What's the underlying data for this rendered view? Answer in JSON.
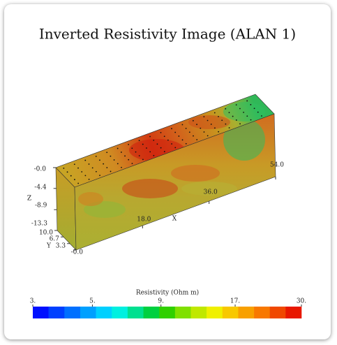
{
  "chart_data": {
    "type": "block3d",
    "title": "Inverted Resistivity Image (ALAN 1)",
    "x_label": "X",
    "y_label": "Y",
    "z_label": "Z",
    "xlim": [
      0,
      54
    ],
    "xticks": [
      {
        "value": 18,
        "label": "18.0"
      },
      {
        "value": 36,
        "label": "36.0"
      },
      {
        "value": 54,
        "label": "54.0"
      }
    ],
    "ylim": [
      0,
      10
    ],
    "yticks": [
      {
        "value": 0,
        "label": "-0.0"
      },
      {
        "value": 3.3,
        "label": "3.3"
      },
      {
        "value": 6.7,
        "label": "6.7"
      },
      {
        "value": 10,
        "label": "10.0"
      }
    ],
    "zlim": [
      -13.3,
      0
    ],
    "zticks": [
      {
        "value": 0,
        "label": "-0.0"
      },
      {
        "value": -4.4,
        "label": "-4.4"
      },
      {
        "value": -8.9,
        "label": "-8.9"
      },
      {
        "value": -13.3,
        "label": "-13.3"
      }
    ],
    "colorbar": {
      "title": "Resistivity (Ohm m)",
      "lim": [
        3,
        30
      ],
      "log": true,
      "ticks": [
        {
          "value": 3,
          "label": "3."
        },
        {
          "value": 5,
          "label": "5."
        },
        {
          "value": 9,
          "label": "9."
        },
        {
          "value": 17,
          "label": "17."
        },
        {
          "value": 30,
          "label": "30."
        }
      ],
      "colors": [
        "#0010ff",
        "#0040ff",
        "#0070ff",
        "#00a0ff",
        "#00d0ff",
        "#00f0e0",
        "#00e090",
        "#00d040",
        "#30d000",
        "#80e000",
        "#c0e800",
        "#f0f000",
        "#f8c800",
        "#f8a000",
        "#f87800",
        "#f04800",
        "#e81800"
      ]
    }
  }
}
